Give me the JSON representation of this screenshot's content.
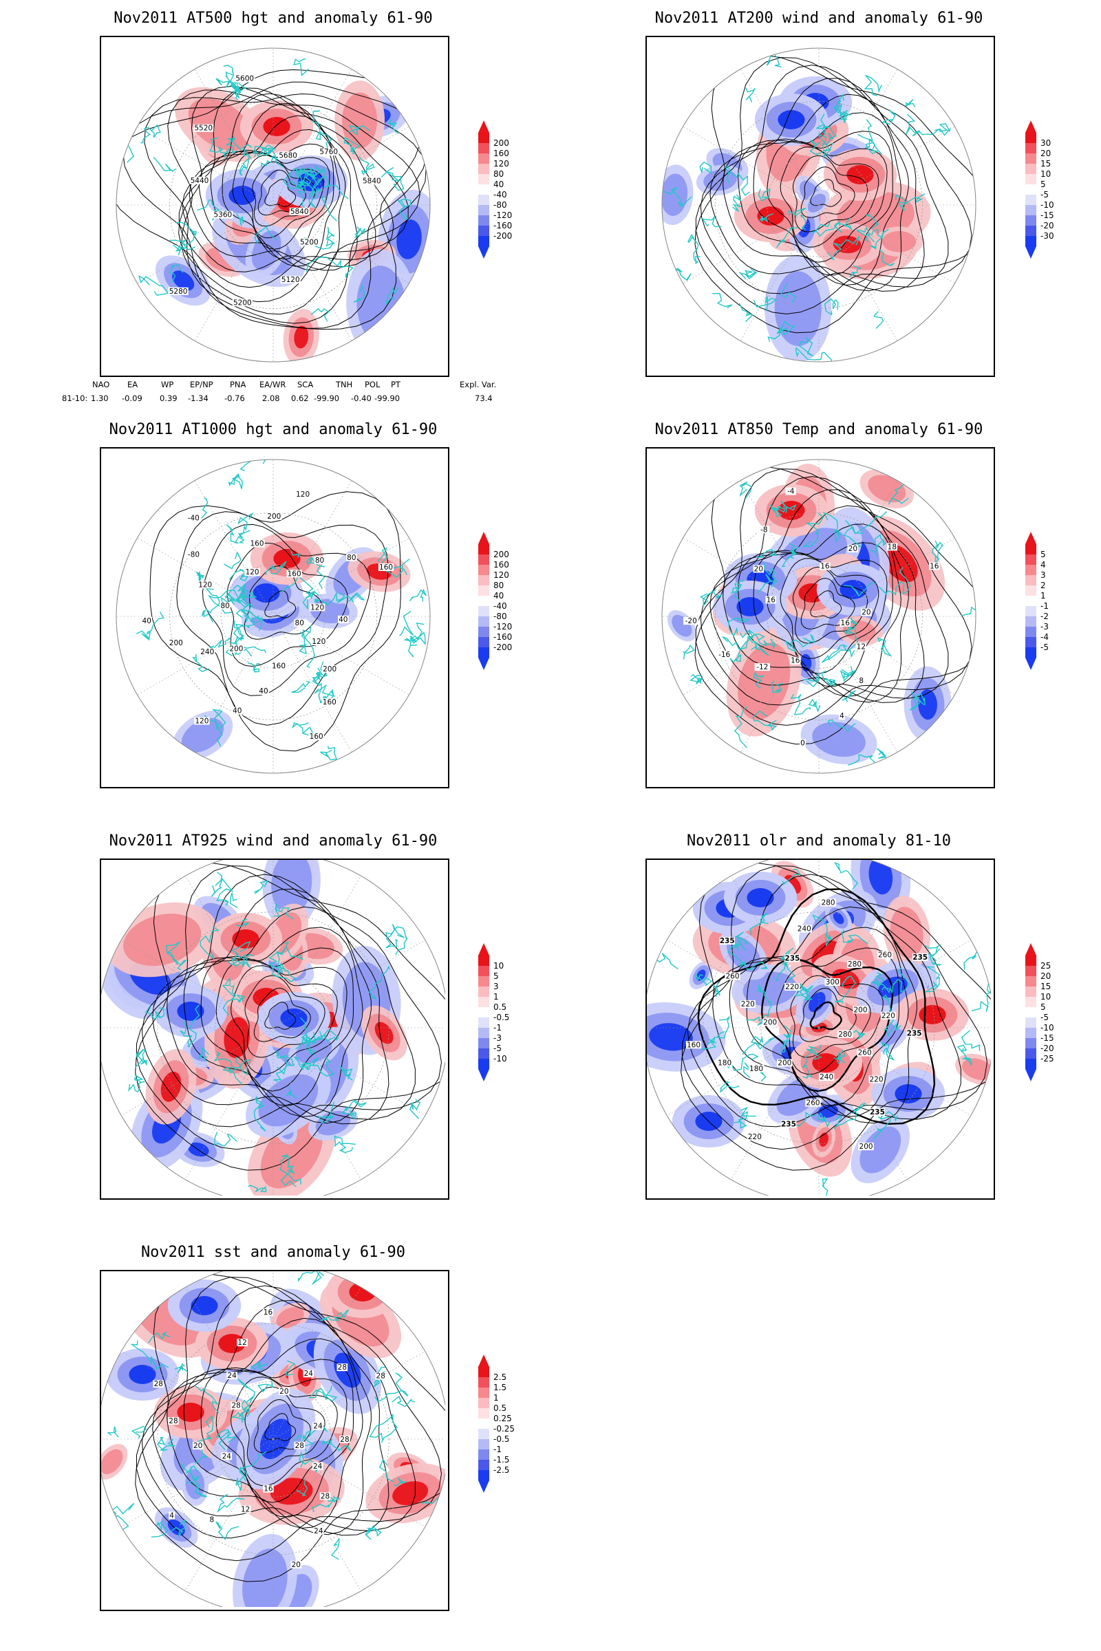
{
  "panels": [
    {
      "title": "Nov2011 AT500 hgt and anomaly 61-90",
      "contour_labels": [
        "5840",
        "5200",
        "5120",
        "5200",
        "5280",
        "5360",
        "5440",
        "5520",
        "5600",
        "5680",
        "5760",
        "5840"
      ],
      "colorbar": [
        "200",
        "160",
        "120",
        "80",
        "40",
        "-40",
        "-80",
        "-120",
        "-160",
        "-200"
      ]
    },
    {
      "title": "Nov2011 AT200 wind and anomaly 61-90",
      "contour_labels": [],
      "colorbar": [
        "30",
        "20",
        "15",
        "10",
        "5",
        "-5",
        "-10",
        "-15",
        "-20",
        "-30"
      ]
    },
    {
      "title": "Nov2011 AT1000 hgt and anomaly 61-90",
      "contour_labels": [
        "80",
        "120",
        "200",
        "160",
        "160",
        "160",
        "40",
        "40",
        "120",
        "200",
        "240",
        "200",
        "40",
        "80",
        "120",
        "-80",
        "-40",
        "120",
        "160",
        "200",
        "120",
        "160",
        "80",
        "80",
        "160",
        "120",
        "40"
      ],
      "colorbar": [
        "200",
        "160",
        "120",
        "80",
        "40",
        "-40",
        "-80",
        "-120",
        "-160",
        "-200"
      ]
    },
    {
      "title": "Nov2011 AT850 Temp and anomaly 61-90",
      "contour_labels": [
        "16",
        "12",
        "8",
        "4",
        "0",
        "16",
        "-12",
        "-16",
        "-20",
        "16",
        "20",
        "-8",
        "-4",
        "16",
        "20",
        "18",
        "16",
        "20"
      ],
      "colorbar": [
        "5",
        "4",
        "3",
        "2",
        "1",
        "-1",
        "-2",
        "-3",
        "-4",
        "-5"
      ]
    },
    {
      "title": "Nov2011 AT925 wind and anomaly 61-90",
      "contour_labels": [],
      "colorbar": [
        "10",
        "5",
        "3",
        "1",
        "0.5",
        "-0.5",
        "-1",
        "-3",
        "-5",
        "-10"
      ]
    },
    {
      "title": "Nov2011 olr and anomaly 81-10",
      "contour_labels": [
        "280",
        "260",
        "220",
        "235",
        "200",
        "240",
        "260",
        "235",
        "220",
        "200",
        "180",
        "180",
        "160",
        "200",
        "220",
        "260",
        "235",
        "220",
        "235",
        "240",
        "280",
        "300",
        "280",
        "260",
        "235",
        "200",
        "220",
        "235"
      ],
      "colorbar": [
        "25",
        "20",
        "15",
        "10",
        "5",
        "-5",
        "-10",
        "-15",
        "-20",
        "-25"
      ]
    },
    {
      "title": "Nov2011 sst and anomaly 61-90",
      "contour_labels": [
        "28",
        "24",
        "28",
        "24",
        "20",
        "16",
        "12",
        "8",
        "4",
        "24",
        "20",
        "28",
        "28",
        "28",
        "24",
        "12",
        "16",
        "20",
        "24",
        "28",
        "28",
        "24",
        "28"
      ],
      "colorbar": [
        "2.5",
        "1.5",
        "1",
        "0.5",
        "0.25",
        "-0.25",
        "-0.5",
        "-1",
        "-1.5",
        "-2.5"
      ]
    }
  ],
  "indices": {
    "headers": [
      "NAO",
      "EA",
      "WP",
      "EP/NP",
      "PNA",
      "EA/WR",
      "SCA",
      "TNH",
      "POL",
      "PT",
      "Expl. Var."
    ],
    "row_label": "81-10:",
    "values": [
      "1.30",
      "-0.09",
      "0.39",
      "-1.34",
      "-0.76",
      "2.08",
      "0.62",
      "-99.90",
      "-0.40",
      "-99.90",
      "73.4"
    ]
  },
  "colors": {
    "positive_strong": "#e8141a",
    "negative_strong": "#1a3cf0",
    "coastline": "#20c8c8",
    "contour": "#000000"
  }
}
